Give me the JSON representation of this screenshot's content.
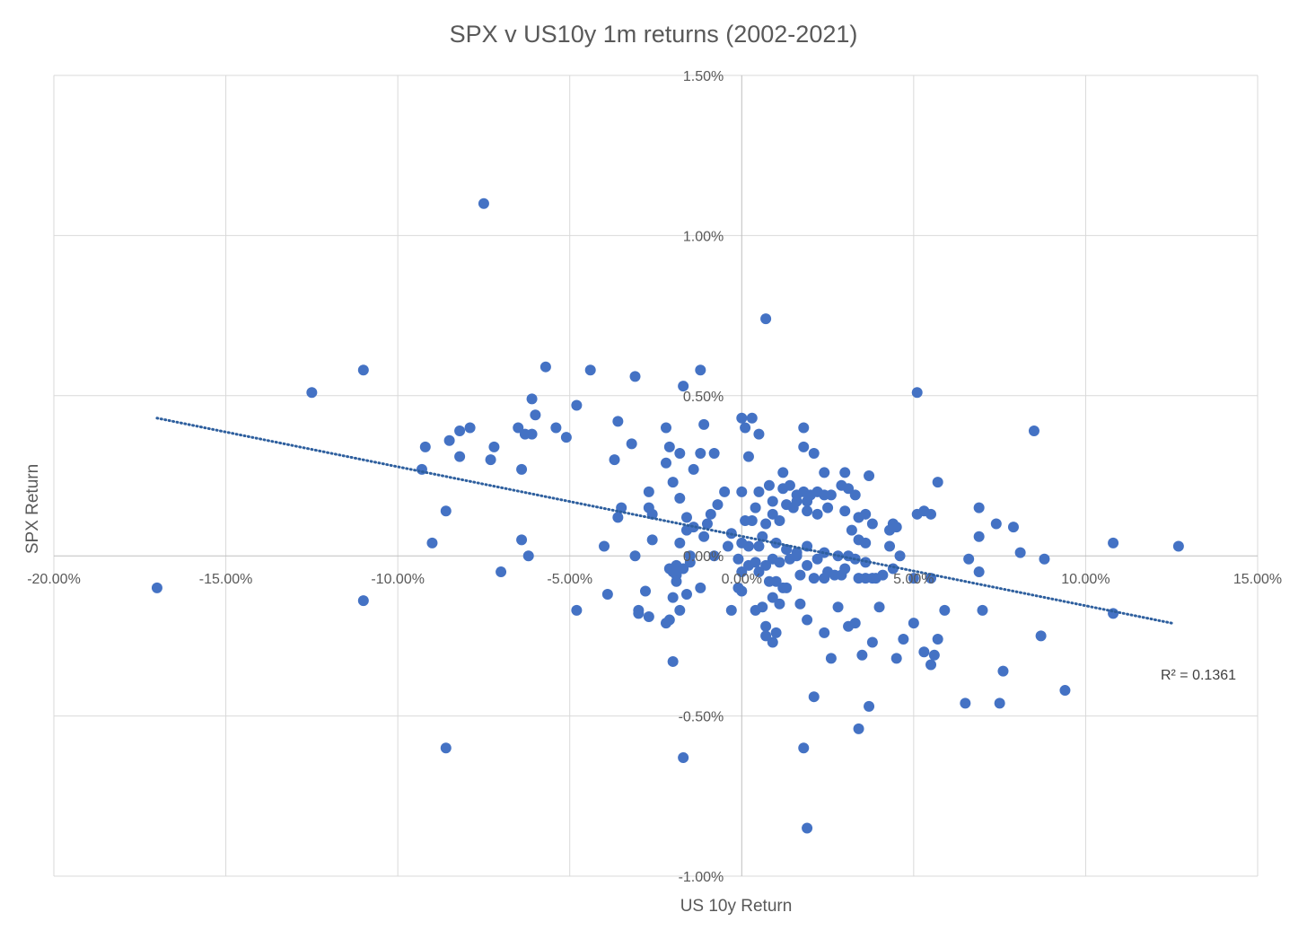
{
  "chart_data": {
    "type": "scatter",
    "title": "SPX v US10y 1m returns (2002-2021)",
    "xlabel": "US 10y Return",
    "ylabel": "SPX Return",
    "xlim": [
      -0.2,
      0.15
    ],
    "ylim": [
      -0.01,
      0.015
    ],
    "x_ticks": [
      -0.2,
      -0.15,
      -0.1,
      -0.05,
      0.0,
      0.05,
      0.1,
      0.15
    ],
    "y_ticks": [
      -0.01,
      -0.005,
      0.0,
      0.005,
      0.01,
      0.015
    ],
    "x_tick_labels": [
      "-20.00%",
      "-15.00%",
      "-10.00%",
      "-5.00%",
      "0.00%",
      "5.00%",
      "10.00%",
      "15.00%"
    ],
    "y_tick_labels": [
      "-1.00%",
      "-0.50%",
      "0.00%",
      "0.50%",
      "1.00%",
      "1.50%"
    ],
    "grid": true,
    "marker_color": "#4472C4",
    "trendline": {
      "type": "linear",
      "x_range": [
        -0.17,
        0.125
      ],
      "y_start": 0.0043,
      "y_end": -0.0021,
      "style": "dotted",
      "color": "#2E5F9E"
    },
    "r_squared_label": "R² = 0.1361",
    "points": [
      [
        -0.075,
        0.011
      ],
      [
        0.007,
        0.0074
      ],
      [
        -0.125,
        0.0051
      ],
      [
        -0.11,
        0.0058
      ],
      [
        -0.057,
        0.0059
      ],
      [
        -0.044,
        0.0058
      ],
      [
        -0.031,
        0.0056
      ],
      [
        -0.012,
        0.0058
      ],
      [
        -0.017,
        0.0053
      ],
      [
        0.051,
        0.0051
      ],
      [
        -0.061,
        0.0049
      ],
      [
        -0.06,
        0.0044
      ],
      [
        -0.048,
        0.0047
      ],
      [
        -0.054,
        0.004
      ],
      [
        -0.051,
        0.0037
      ],
      [
        -0.065,
        0.004
      ],
      [
        -0.061,
        0.0038
      ],
      [
        -0.063,
        0.0038
      ],
      [
        -0.079,
        0.004
      ],
      [
        -0.082,
        0.0039
      ],
      [
        -0.085,
        0.0036
      ],
      [
        -0.092,
        0.0034
      ],
      [
        -0.082,
        0.0031
      ],
      [
        -0.072,
        0.0034
      ],
      [
        -0.073,
        0.003
      ],
      [
        -0.064,
        0.0027
      ],
      [
        -0.093,
        0.0027
      ],
      [
        -0.036,
        0.0042
      ],
      [
        -0.032,
        0.0035
      ],
      [
        -0.037,
        0.003
      ],
      [
        -0.022,
        0.004
      ],
      [
        -0.011,
        0.0041
      ],
      [
        -0.021,
        0.0034
      ],
      [
        -0.018,
        0.0032
      ],
      [
        -0.012,
        0.0032
      ],
      [
        -0.008,
        0.0032
      ],
      [
        -0.022,
        0.0029
      ],
      [
        -0.014,
        0.0027
      ],
      [
        -0.02,
        0.0023
      ],
      [
        -0.027,
        0.002
      ],
      [
        -0.018,
        0.0018
      ],
      [
        -0.027,
        0.0015
      ],
      [
        -0.026,
        0.0013
      ],
      [
        -0.035,
        0.0015
      ],
      [
        -0.036,
        0.0012
      ],
      [
        -0.016,
        0.0012
      ],
      [
        -0.007,
        0.0016
      ],
      [
        -0.009,
        0.0013
      ],
      [
        -0.01,
        0.001
      ],
      [
        -0.014,
        0.0009
      ],
      [
        -0.016,
        0.0008
      ],
      [
        -0.011,
        0.0006
      ],
      [
        -0.018,
        0.0004
      ],
      [
        -0.026,
        0.0005
      ],
      [
        -0.04,
        0.0003
      ],
      [
        -0.064,
        0.0005
      ],
      [
        -0.09,
        0.0004
      ],
      [
        -0.086,
        0.0014
      ],
      [
        -0.062,
        0.0
      ],
      [
        -0.031,
        0.0
      ],
      [
        -0.015,
        0.0
      ],
      [
        -0.008,
        0.0
      ],
      [
        -0.004,
        0.0003
      ],
      [
        -0.005,
        0.002
      ],
      [
        -0.003,
        0.0007
      ],
      [
        0.0,
        0.002
      ],
      [
        0.005,
        0.002
      ],
      [
        0.008,
        0.0022
      ],
      [
        0.012,
        0.0026
      ],
      [
        0.018,
        0.004
      ],
      [
        0.018,
        0.0034
      ],
      [
        0.021,
        0.0032
      ],
      [
        0.024,
        0.0026
      ],
      [
        0.03,
        0.0026
      ],
      [
        0.003,
        0.0043
      ],
      [
        0.005,
        0.0038
      ],
      [
        0.0,
        0.0043
      ],
      [
        0.001,
        0.004
      ],
      [
        0.002,
        0.0031
      ],
      [
        0.012,
        0.0021
      ],
      [
        0.014,
        0.0022
      ],
      [
        0.016,
        0.0019
      ],
      [
        0.018,
        0.002
      ],
      [
        0.02,
        0.0019
      ],
      [
        0.022,
        0.002
      ],
      [
        0.024,
        0.0019
      ],
      [
        0.026,
        0.0019
      ],
      [
        0.029,
        0.0022
      ],
      [
        0.031,
        0.0021
      ],
      [
        0.033,
        0.0019
      ],
      [
        0.037,
        0.0025
      ],
      [
        0.057,
        0.0023
      ],
      [
        0.009,
        0.0017
      ],
      [
        0.013,
        0.0016
      ],
      [
        0.016,
        0.0017
      ],
      [
        0.019,
        0.0017
      ],
      [
        0.022,
        0.0013
      ],
      [
        0.025,
        0.0015
      ],
      [
        0.03,
        0.0014
      ],
      [
        0.034,
        0.0012
      ],
      [
        0.036,
        0.0013
      ],
      [
        0.038,
        0.001
      ],
      [
        0.044,
        0.001
      ],
      [
        0.045,
        0.0009
      ],
      [
        0.051,
        0.0013
      ],
      [
        0.053,
        0.0014
      ],
      [
        0.055,
        0.0013
      ],
      [
        0.069,
        0.0015
      ],
      [
        0.074,
        0.001
      ],
      [
        0.079,
        0.0009
      ],
      [
        0.069,
        0.0006
      ],
      [
        0.081,
        0.0001
      ],
      [
        0.085,
        0.0039
      ],
      [
        0.108,
        0.0004
      ],
      [
        0.127,
        0.0003
      ],
      [
        0.004,
        0.0015
      ],
      [
        0.009,
        0.0013
      ],
      [
        0.011,
        0.0011
      ],
      [
        0.015,
        0.0015
      ],
      [
        0.019,
        0.0014
      ],
      [
        0.007,
        0.001
      ],
      [
        0.003,
        0.0011
      ],
      [
        0.001,
        0.0011
      ],
      [
        0.006,
        0.0006
      ],
      [
        0.002,
        0.0003
      ],
      [
        0.0,
        0.0004
      ],
      [
        0.005,
        0.0003
      ],
      [
        0.01,
        0.0004
      ],
      [
        0.013,
        0.0002
      ],
      [
        0.016,
        0.0001
      ],
      [
        0.019,
        0.0003
      ],
      [
        0.024,
        0.0001
      ],
      [
        0.028,
        0.0
      ],
      [
        0.031,
        0.0
      ],
      [
        0.034,
        0.0005
      ],
      [
        0.036,
        0.0004
      ],
      [
        0.043,
        0.0003
      ],
      [
        0.046,
        0.0
      ],
      [
        0.043,
        0.0008
      ],
      [
        0.034,
        0.0012
      ],
      [
        0.032,
        0.0008
      ],
      [
        -0.001,
        -0.0001
      ],
      [
        0.002,
        -0.0003
      ],
      [
        0.004,
        -0.0002
      ],
      [
        0.007,
        -0.0003
      ],
      [
        0.009,
        -0.0001
      ],
      [
        0.011,
        -0.0002
      ],
      [
        0.014,
        -0.0001
      ],
      [
        0.016,
        0.0
      ],
      [
        0.019,
        -0.0003
      ],
      [
        0.022,
        -0.0001
      ],
      [
        0.025,
        -0.0005
      ],
      [
        0.027,
        -0.0006
      ],
      [
        0.03,
        -0.0004
      ],
      [
        0.033,
        -0.0001
      ],
      [
        0.036,
        -0.0002
      ],
      [
        0.039,
        -0.0007
      ],
      [
        0.044,
        -0.0004
      ],
      [
        0.05,
        -0.0007
      ],
      [
        0.055,
        -0.0007
      ],
      [
        0.066,
        -0.0001
      ],
      [
        0.069,
        -0.0005
      ],
      [
        0.088,
        -0.0001
      ],
      [
        0.0,
        -0.0005
      ],
      [
        0.005,
        -0.0005
      ],
      [
        0.008,
        -0.0008
      ],
      [
        0.01,
        -0.0008
      ],
      [
        0.013,
        -0.001
      ],
      [
        0.017,
        -0.0006
      ],
      [
        0.021,
        -0.0007
      ],
      [
        0.024,
        -0.0007
      ],
      [
        0.029,
        -0.0006
      ],
      [
        0.034,
        -0.0007
      ],
      [
        0.036,
        -0.0007
      ],
      [
        0.038,
        -0.0007
      ],
      [
        0.041,
        -0.0006
      ],
      [
        -0.001,
        -0.001
      ],
      [
        0.004,
        -0.0017
      ],
      [
        0.006,
        -0.0016
      ],
      [
        0.009,
        -0.0013
      ],
      [
        0.011,
        -0.0015
      ],
      [
        0.012,
        -0.001
      ],
      [
        0.017,
        -0.0015
      ],
      [
        0.019,
        -0.002
      ],
      [
        0.024,
        -0.0024
      ],
      [
        0.028,
        -0.0016
      ],
      [
        0.031,
        -0.0022
      ],
      [
        0.033,
        -0.0021
      ],
      [
        0.04,
        -0.0016
      ],
      [
        0.047,
        -0.0026
      ],
      [
        0.05,
        -0.0021
      ],
      [
        0.057,
        -0.0026
      ],
      [
        0.056,
        -0.0031
      ],
      [
        0.053,
        -0.003
      ],
      [
        0.055,
        -0.0034
      ],
      [
        0.045,
        -0.0032
      ],
      [
        0.038,
        -0.0027
      ],
      [
        0.035,
        -0.0031
      ],
      [
        0.026,
        -0.0032
      ],
      [
        0.007,
        -0.0022
      ],
      [
        0.01,
        -0.0024
      ],
      [
        0.009,
        -0.0027
      ],
      [
        0.007,
        -0.0025
      ],
      [
        0.059,
        -0.0017
      ],
      [
        0.07,
        -0.0017
      ],
      [
        0.087,
        -0.0025
      ],
      [
        0.108,
        -0.0018
      ],
      [
        0.076,
        -0.0036
      ],
      [
        0.094,
        -0.0042
      ],
      [
        0.065,
        -0.0046
      ],
      [
        0.075,
        -0.0046
      ],
      [
        0.037,
        -0.0047
      ],
      [
        0.021,
        -0.0044
      ],
      [
        0.034,
        -0.0054
      ],
      [
        0.018,
        -0.006
      ],
      [
        0.019,
        -0.0085
      ],
      [
        -0.017,
        -0.0063
      ],
      [
        -0.086,
        -0.006
      ],
      [
        -0.02,
        -0.0033
      ],
      [
        -0.03,
        -0.0018
      ],
      [
        -0.02,
        -0.0013
      ],
      [
        -0.018,
        -0.0017
      ],
      [
        -0.021,
        -0.002
      ],
      [
        -0.022,
        -0.0021
      ],
      [
        -0.019,
        -0.0006
      ],
      [
        -0.02,
        -0.0005
      ],
      [
        -0.021,
        -0.0004
      ],
      [
        -0.019,
        -0.0003
      ],
      [
        -0.017,
        -0.0004
      ],
      [
        -0.015,
        -0.0002
      ],
      [
        -0.019,
        -0.0008
      ],
      [
        -0.028,
        -0.0011
      ],
      [
        -0.03,
        -0.0017
      ],
      [
        -0.027,
        -0.0019
      ],
      [
        -0.039,
        -0.0012
      ],
      [
        -0.048,
        -0.0017
      ],
      [
        -0.07,
        -0.0005
      ],
      [
        -0.11,
        -0.0014
      ],
      [
        -0.17,
        -0.001
      ],
      [
        -0.012,
        -0.001
      ],
      [
        -0.016,
        -0.0012
      ],
      [
        -0.003,
        -0.0017
      ],
      [
        0.0,
        -0.0011
      ]
    ]
  }
}
